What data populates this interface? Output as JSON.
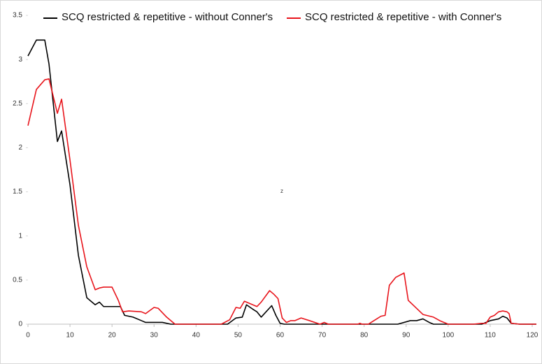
{
  "chart_data": {
    "type": "line",
    "annotation": "z",
    "xlim": [
      0,
      121
    ],
    "xticks": [
      0,
      10,
      20,
      30,
      40,
      50,
      60,
      70,
      80,
      90,
      100,
      110,
      120
    ],
    "ylim": [
      0,
      3.5
    ],
    "yticks": [
      0,
      0.5,
      1,
      1.5,
      2,
      2.5,
      3,
      3.5
    ],
    "series": [
      {
        "name": "SCQ restricted & repetitive - without Conner's",
        "color": "#000000",
        "x": [
          0,
          2,
          4,
          5,
          7,
          8,
          10,
          12,
          14,
          16,
          17,
          18,
          20,
          22,
          23,
          25,
          27,
          28,
          32,
          34,
          47.5,
          49.5,
          51,
          52,
          53.5,
          54.5,
          55.5,
          58,
          59,
          60,
          61,
          88,
          91,
          92.5,
          94,
          95.5,
          96.5,
          108,
          110,
          112,
          113,
          114,
          115,
          117,
          121
        ],
        "values": [
          3.04,
          3.22,
          3.22,
          2.95,
          2.07,
          2.19,
          1.58,
          0.78,
          0.3,
          0.22,
          0.25,
          0.2,
          0.2,
          0.2,
          0.1,
          0.08,
          0.04,
          0.02,
          0.02,
          0,
          0,
          0.07,
          0.08,
          0.22,
          0.17,
          0.14,
          0.08,
          0.21,
          0.1,
          0.01,
          0,
          0,
          0.04,
          0.04,
          0.06,
          0.02,
          0,
          0,
          0.04,
          0.06,
          0.09,
          0.07,
          0.01,
          0,
          0
        ]
      },
      {
        "name": "SCQ restricted & repetitive - with Conner's",
        "color": "#e8141b",
        "x": [
          0,
          2,
          4,
          5,
          7,
          8,
          10,
          12,
          14,
          16,
          17,
          18,
          20,
          21.5,
          22.5,
          24,
          27,
          28,
          30,
          31,
          33,
          35,
          46,
          48,
          49.5,
          50.5,
          51.5,
          53.5,
          54.5,
          55.5,
          57.5,
          58.5,
          59.5,
          60.5,
          61.5,
          62.5,
          63.5,
          65,
          67,
          69.5,
          70.5,
          71.5,
          78.5,
          79,
          79.5,
          81,
          82,
          83,
          84,
          85,
          86,
          87.5,
          89.5,
          90.5,
          94,
          96.5,
          98,
          100,
          106,
          108,
          109,
          110,
          111,
          112,
          113,
          114,
          114.5,
          115,
          117,
          121
        ],
        "values": [
          2.25,
          2.66,
          2.77,
          2.78,
          2.39,
          2.55,
          1.86,
          1.12,
          0.65,
          0.39,
          0.41,
          0.42,
          0.42,
          0.27,
          0.14,
          0.15,
          0.14,
          0.12,
          0.19,
          0.18,
          0.08,
          0,
          0,
          0.05,
          0.19,
          0.18,
          0.26,
          0.22,
          0.2,
          0.25,
          0.38,
          0.34,
          0.29,
          0.07,
          0.02,
          0.04,
          0.04,
          0.07,
          0.04,
          0,
          0.02,
          0,
          0,
          0.01,
          0,
          0,
          0.03,
          0.06,
          0.09,
          0.1,
          0.44,
          0.53,
          0.58,
          0.27,
          0.11,
          0.08,
          0.04,
          0,
          0,
          0.01,
          0.01,
          0.08,
          0.1,
          0.14,
          0.15,
          0.14,
          0.12,
          0.01,
          0,
          0
        ]
      }
    ],
    "legend": "top"
  }
}
